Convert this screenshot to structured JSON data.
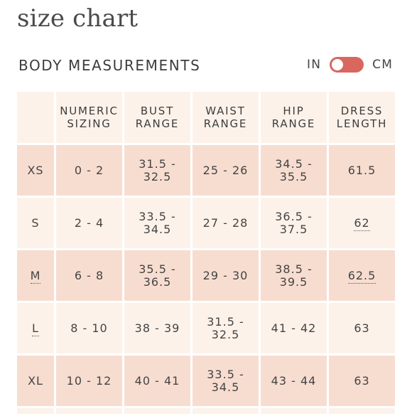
{
  "page": {
    "title": "size chart"
  },
  "section": {
    "title": "BODY MEASUREMENTS"
  },
  "unit_toggle": {
    "left_label": "IN",
    "right_label": "CM",
    "toggle_color": "#d9675f"
  },
  "table": {
    "headers": [
      "",
      "NUMERIC SIZING",
      "BUST RANGE",
      "WAIST RANGE",
      "HIP RANGE",
      "DRESS LENGTH"
    ],
    "rows": [
      [
        "XS",
        "0 - 2",
        "31.5 - 32.5",
        "25 - 26",
        "34.5 - 35.5",
        "61.5"
      ],
      [
        "S",
        "2 - 4",
        "33.5 - 34.5",
        "27 - 28",
        "36.5 - 37.5",
        "62"
      ],
      [
        "M",
        "6 - 8",
        "35.5 - 36.5",
        "29 - 30",
        "38.5 - 39.5",
        "62.5"
      ],
      [
        "L",
        "8 - 10",
        "38 - 39",
        "31.5 - 32.5",
        "41 - 42",
        "63"
      ],
      [
        "XL",
        "10 - 12",
        "40 - 41",
        "33.5 - 34.5",
        "43 - 44",
        "63"
      ]
    ],
    "colors": {
      "header_bg": "#fdf2ea",
      "shaded_row": "#f7ddd0",
      "light_row": "#fdf2ea"
    }
  }
}
